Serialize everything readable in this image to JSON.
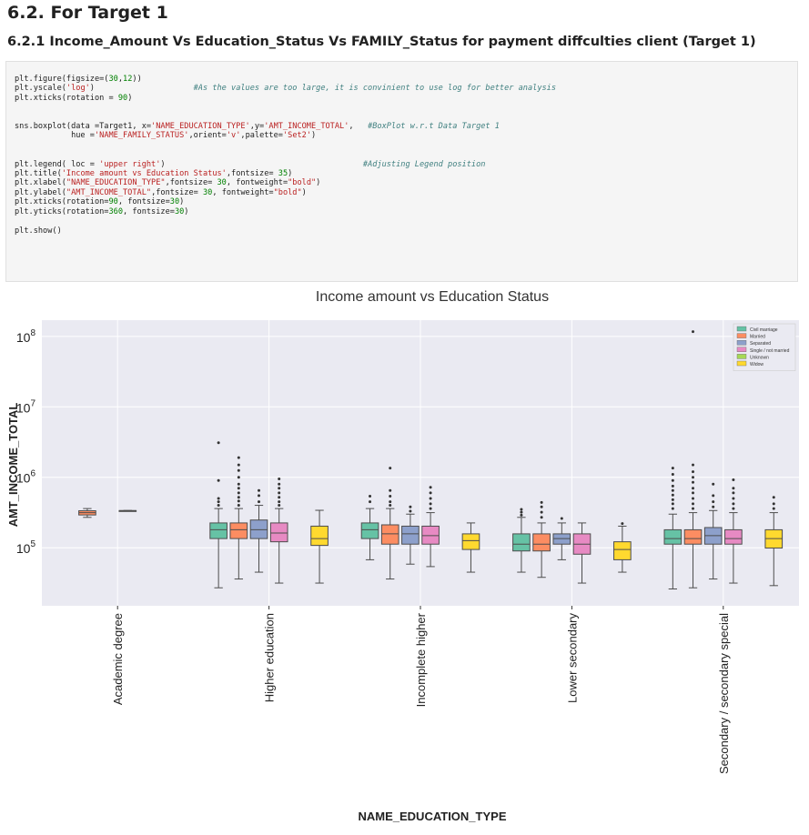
{
  "heading": "6.2. For Target 1",
  "subheading": "6.2.1 Income_Amount Vs Education_Status Vs FAMILY_Status for payment diffculties client (Target 1)",
  "code_lines": [
    "plt.figure(figsize=(30,12))",
    "plt.yscale('log')                     #As the values are too large, it is convinient to use log for better analysis",
    "plt.xticks(rotation = 90)",
    "",
    "",
    "sns.boxplot(data =Target1, x='NAME_EDUCATION_TYPE',y='AMT_INCOME_TOTAL',   #BoxPlot w.r.t Data Target 1",
    "            hue ='NAME_FAMILY_STATUS',orient='v',palette='Set2')",
    "",
    "",
    "plt.legend( loc = 'upper right')                                          #Adjusting Legend position",
    "plt.title('Income amount vs Education Status',fontsize= 35)",
    "plt.xlabel(\"NAME_EDUCATION_TYPE\",fontsize= 30, fontweight=\"bold\")",
    "plt.ylabel(\"AMT_INCOME_TOTAL\",fontsize= 30, fontweight=\"bold\")",
    "plt.xticks(rotation=90, fontsize=30)",
    "plt.yticks(rotation=360, fontsize=30)",
    "",
    "plt.show()"
  ],
  "chart_data": {
    "type": "box",
    "title": "Income amount vs Education Status",
    "xlabel": "NAME_EDUCATION_TYPE",
    "ylabel": "AMT_INCOME_TOTAL",
    "yscale": "log",
    "ylim": [
      15000,
      170000000
    ],
    "yticks": [
      {
        "value": 100000,
        "base": "10",
        "exp": "5"
      },
      {
        "value": 1000000,
        "base": "10",
        "exp": "6"
      },
      {
        "value": 10000000,
        "base": "10",
        "exp": "7"
      },
      {
        "value": 100000000,
        "base": "10",
        "exp": "8"
      }
    ],
    "categories": [
      "Academic degree",
      "Higher education",
      "Incomplete higher",
      "Lower secondary",
      "Secondary / secondary special"
    ],
    "legend_position": "upper right",
    "series": [
      {
        "name": "Civil marriage",
        "color": "#66c2a5"
      },
      {
        "name": "Married",
        "color": "#fc8d62"
      },
      {
        "name": "Separated",
        "color": "#8da0cb"
      },
      {
        "name": "Single / not married",
        "color": "#e78ac3"
      },
      {
        "name": "Unknown",
        "color": "#a6d854"
      },
      {
        "name": "Widow",
        "color": "#ffd92f"
      }
    ],
    "boxes": [
      {
        "category": 0,
        "series": 1,
        "whislo": 270000,
        "q1": 292000,
        "med": 315000,
        "q3": 335000,
        "whishi": 360000,
        "fliers": []
      },
      {
        "category": 0,
        "series": 3,
        "whislo": 337000,
        "q1": 337000,
        "med": 337000,
        "q3": 337000,
        "whishi": 337000,
        "fliers": []
      },
      {
        "category": 1,
        "series": 0,
        "whislo": 27000,
        "q1": 135000,
        "med": 180000,
        "q3": 225000,
        "whishi": 360000,
        "fliers": [
          400000,
          450000,
          500000,
          900000,
          3100000
        ]
      },
      {
        "category": 1,
        "series": 1,
        "whislo": 36000,
        "q1": 135000,
        "med": 180000,
        "q3": 225000,
        "whishi": 360000,
        "fliers": [
          400000,
          460000,
          520000,
          600000,
          700000,
          800000,
          1000000,
          1250000,
          1500000,
          1900000
        ]
      },
      {
        "category": 1,
        "series": 2,
        "whislo": 45000,
        "q1": 135000,
        "med": 180000,
        "q3": 247500,
        "whishi": 400000,
        "fliers": [
          450000,
          550000,
          650000
        ]
      },
      {
        "category": 1,
        "series": 3,
        "whislo": 31500,
        "q1": 121500,
        "med": 162000,
        "q3": 225000,
        "whishi": 360000,
        "fliers": [
          400000,
          450000,
          520000,
          600000,
          700000,
          800000,
          950000
        ]
      },
      {
        "category": 1,
        "series": 5,
        "whislo": 31500,
        "q1": 108000,
        "med": 135000,
        "q3": 202500,
        "whishi": 340000,
        "fliers": []
      },
      {
        "category": 2,
        "series": 0,
        "whislo": 67500,
        "q1": 135000,
        "med": 180000,
        "q3": 225000,
        "whishi": 360000,
        "fliers": [
          450000,
          540000
        ]
      },
      {
        "category": 2,
        "series": 1,
        "whislo": 36000,
        "q1": 112500,
        "med": 157500,
        "q3": 211500,
        "whishi": 360000,
        "fliers": [
          400000,
          450000,
          540000,
          650000,
          1350000
        ]
      },
      {
        "category": 2,
        "series": 2,
        "whislo": 58500,
        "q1": 112500,
        "med": 157500,
        "q3": 202500,
        "whishi": 300000,
        "fliers": [
          330000,
          380000
        ]
      },
      {
        "category": 2,
        "series": 3,
        "whislo": 54000,
        "q1": 112500,
        "med": 148500,
        "q3": 202500,
        "whishi": 315000,
        "fliers": [
          360000,
          420000,
          500000,
          600000,
          720000
        ]
      },
      {
        "category": 2,
        "series": 5,
        "whislo": 45000,
        "q1": 94500,
        "med": 126000,
        "q3": 157500,
        "whishi": 225000,
        "fliers": []
      },
      {
        "category": 3,
        "series": 0,
        "whislo": 45000,
        "q1": 90000,
        "med": 112500,
        "q3": 157500,
        "whishi": 270000,
        "fliers": [
          290000,
          320000,
          350000
        ]
      },
      {
        "category": 3,
        "series": 1,
        "whislo": 38000,
        "q1": 90000,
        "med": 112500,
        "q3": 157500,
        "whishi": 225000,
        "fliers": [
          270000,
          320000,
          380000,
          440000
        ]
      },
      {
        "category": 3,
        "series": 2,
        "whislo": 67500,
        "q1": 112500,
        "med": 135000,
        "q3": 157500,
        "whishi": 225000,
        "fliers": [
          260000
        ]
      },
      {
        "category": 3,
        "series": 3,
        "whislo": 31500,
        "q1": 81000,
        "med": 112500,
        "q3": 157500,
        "whishi": 225000,
        "fliers": []
      },
      {
        "category": 3,
        "series": 5,
        "whislo": 45000,
        "q1": 67500,
        "med": 94500,
        "q3": 121500,
        "whishi": 202500,
        "fliers": [
          220000
        ]
      },
      {
        "category": 4,
        "series": 0,
        "whislo": 26000,
        "q1": 112500,
        "med": 135000,
        "q3": 180000,
        "whishi": 300000,
        "fliers": [
          360000,
          420000,
          480000,
          560000,
          650000,
          750000,
          900000,
          1100000,
          1350000
        ]
      },
      {
        "category": 4,
        "series": 1,
        "whislo": 27000,
        "q1": 112500,
        "med": 135000,
        "q3": 180000,
        "whishi": 315000,
        "fliers": [
          360000,
          420000,
          500000,
          600000,
          700000,
          850000,
          1000000,
          1200000,
          1500000,
          117000000
        ]
      },
      {
        "category": 4,
        "series": 2,
        "whislo": 36000,
        "q1": 112500,
        "med": 148500,
        "q3": 193500,
        "whishi": 337500,
        "fliers": [
          380000,
          450000,
          550000,
          800000
        ]
      },
      {
        "category": 4,
        "series": 3,
        "whislo": 31500,
        "q1": 112500,
        "med": 135000,
        "q3": 180000,
        "whishi": 315000,
        "fliers": [
          360000,
          420000,
          500000,
          600000,
          700000,
          920000
        ]
      },
      {
        "category": 4,
        "series": 5,
        "whislo": 29000,
        "q1": 99000,
        "med": 135000,
        "q3": 180000,
        "whishi": 315000,
        "fliers": [
          360000,
          420000,
          520000
        ]
      }
    ]
  }
}
